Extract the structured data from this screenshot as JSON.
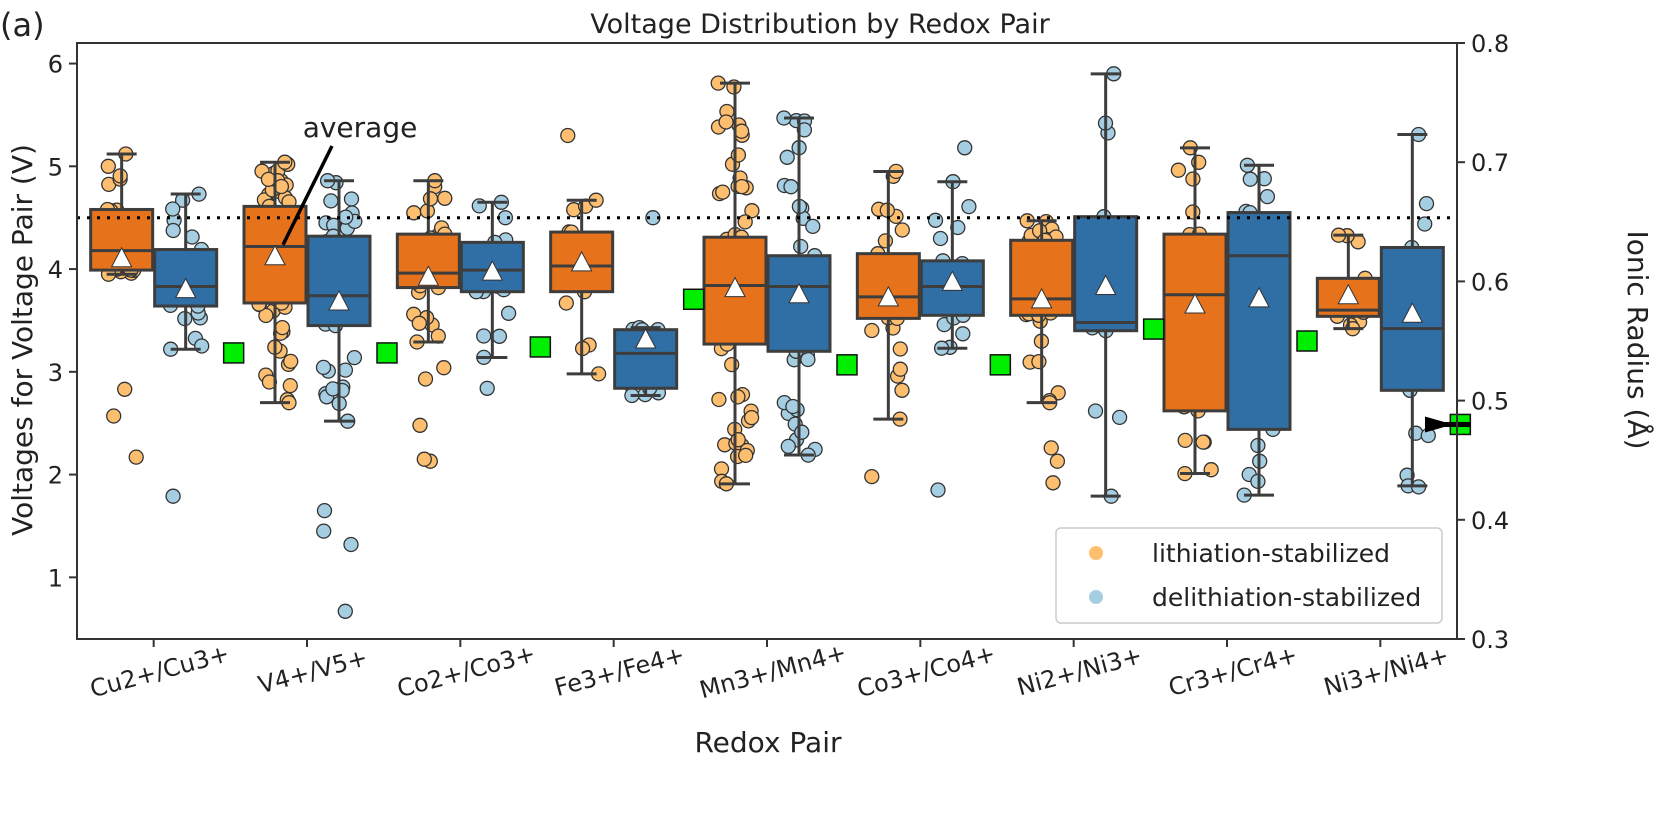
{
  "chart_data": {
    "type": "box",
    "panel_label": "(a)",
    "title": "Voltage Distribution by Redox Pair",
    "xlabel": "Redox Pair",
    "ylabel": "Voltages for Voltage Pair (V)",
    "y2label": "Ionic Radius (Å)",
    "ylim": [
      0.4,
      6.2
    ],
    "y2lim": [
      0.3,
      0.8
    ],
    "yticks": [
      1,
      2,
      3,
      4,
      5,
      6
    ],
    "y2ticks": [
      0.3,
      0.4,
      0.5,
      0.6,
      0.7,
      0.8
    ],
    "reference_line": 4.5,
    "annotation": {
      "text": "average",
      "points_to": {
        "category": "V4+/V5+",
        "value": 4.1
      }
    },
    "legend": {
      "position": "lower-right",
      "entries": [
        {
          "label": "lithiation-stabilized",
          "color": "#fdbf6f"
        },
        {
          "label": "delithiation-stabilized",
          "color": "#a6cee3"
        }
      ]
    },
    "colors": {
      "lith_box": "#e6731b",
      "delith_box": "#2f6fa6",
      "lith_point": "#fdbf6f",
      "delith_point": "#a6cee3",
      "radius_marker": "#00ee00"
    },
    "categories": [
      "Cu2+/Cu3+",
      "V4+/V5+",
      "Co2+/Co3+",
      "Fe3+/Fe4+",
      "Mn3+/Mn4+",
      "Co3+/Co4+",
      "Ni2+/Ni3+",
      "Cr3+/Cr4+",
      "Ni3+/Ni4+"
    ],
    "series": [
      {
        "name": "lithiation-stabilized",
        "boxes": [
          {
            "whislo": 3.95,
            "q1": 3.99,
            "med": 4.18,
            "q3": 4.58,
            "whishi": 5.12,
            "mean": 4.1,
            "fliers": [
              2.17,
              2.57,
              2.83
            ]
          },
          {
            "whislo": 2.7,
            "q1": 3.67,
            "med": 4.22,
            "q3": 4.61,
            "whishi": 5.04,
            "mean": 4.12,
            "fliers": []
          },
          {
            "whislo": 3.29,
            "q1": 3.82,
            "med": 3.96,
            "q3": 4.34,
            "whishi": 4.86,
            "mean": 3.92,
            "fliers": [
              2.13,
              2.15,
              2.48,
              2.93,
              3.04
            ]
          },
          {
            "whislo": 2.98,
            "q1": 3.78,
            "med": 4.03,
            "q3": 4.36,
            "whishi": 4.67,
            "mean": 4.06,
            "fliers": [
              5.3
            ]
          },
          {
            "whislo": 1.91,
            "q1": 3.27,
            "med": 3.84,
            "q3": 4.31,
            "whishi": 5.81,
            "mean": 3.81,
            "fliers": []
          },
          {
            "whislo": 2.54,
            "q1": 3.52,
            "med": 3.73,
            "q3": 4.15,
            "whishi": 4.95,
            "mean": 3.72,
            "fliers": [
              1.98
            ]
          },
          {
            "whislo": 2.7,
            "q1": 3.55,
            "med": 3.71,
            "q3": 4.28,
            "whishi": 4.47,
            "mean": 3.7,
            "fliers": [
              1.92,
              2.13,
              2.26
            ]
          },
          {
            "whislo": 2.01,
            "q1": 2.62,
            "med": 3.75,
            "q3": 4.34,
            "whishi": 5.18,
            "mean": 3.65,
            "fliers": []
          },
          {
            "whislo": 3.42,
            "q1": 3.54,
            "med": 3.6,
            "q3": 3.91,
            "whishi": 4.33,
            "mean": 3.74,
            "fliers": []
          }
        ]
      },
      {
        "name": "delithiation-stabilized",
        "boxes": [
          {
            "whislo": 3.22,
            "q1": 3.64,
            "med": 3.83,
            "q3": 4.19,
            "whishi": 4.73,
            "mean": 3.8,
            "fliers": [
              1.79
            ]
          },
          {
            "whislo": 2.52,
            "q1": 3.45,
            "med": 3.74,
            "q3": 4.32,
            "whishi": 4.86,
            "mean": 3.68,
            "fliers": [
              0.67,
              1.32,
              1.45,
              1.65
            ]
          },
          {
            "whislo": 3.14,
            "q1": 3.78,
            "med": 3.99,
            "q3": 4.26,
            "whishi": 4.65,
            "mean": 3.97,
            "fliers": [
              2.84
            ]
          },
          {
            "whislo": 2.77,
            "q1": 2.84,
            "med": 3.18,
            "q3": 3.41,
            "whishi": 3.43,
            "mean": 3.31,
            "fliers": [
              4.5
            ]
          },
          {
            "whislo": 2.19,
            "q1": 3.2,
            "med": 3.83,
            "q3": 4.13,
            "whishi": 5.47,
            "mean": 3.75,
            "fliers": []
          },
          {
            "whislo": 3.23,
            "q1": 3.55,
            "med": 3.83,
            "q3": 4.08,
            "whishi": 4.85,
            "mean": 3.87,
            "fliers": [
              1.85,
              5.18
            ]
          },
          {
            "whislo": 1.79,
            "q1": 3.4,
            "med": 3.48,
            "q3": 4.51,
            "whishi": 5.9,
            "mean": 3.83,
            "fliers": []
          },
          {
            "whislo": 1.8,
            "q1": 2.44,
            "med": 4.13,
            "q3": 4.55,
            "whishi": 5.01,
            "mean": 3.71,
            "fliers": []
          },
          {
            "whislo": 1.89,
            "q1": 2.82,
            "med": 3.42,
            "q3": 4.21,
            "whishi": 5.31,
            "mean": 3.56,
            "fliers": [
              1.88,
              2.38
            ]
          }
        ]
      },
      {
        "name": "ionic radius",
        "axis": "y2",
        "marker": "square",
        "values": [
          0.54,
          0.54,
          0.545,
          0.585,
          0.53,
          0.53,
          0.56,
          0.55,
          0.48
        ],
        "arrow_on": "Ni3+/Ni4+"
      }
    ]
  }
}
